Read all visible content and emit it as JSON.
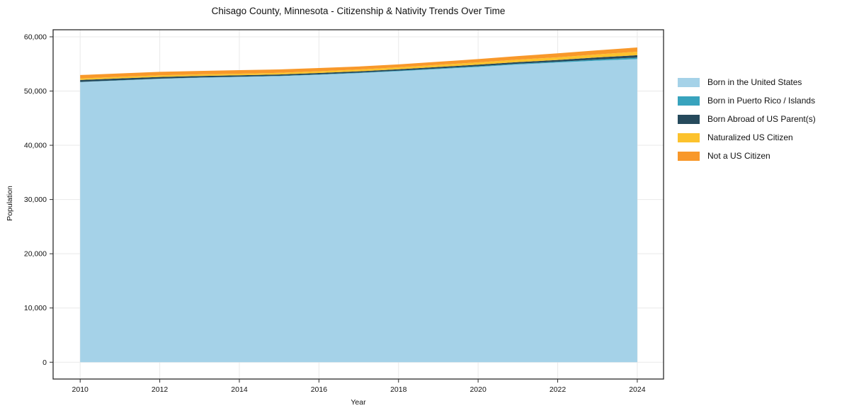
{
  "chart_data": {
    "type": "area",
    "stacked": true,
    "title": "Chisago County, Minnesota - Citizenship & Nativity Trends Over Time",
    "xlabel": "Year",
    "ylabel": "Population",
    "grid": true,
    "legend_position": "right-outside",
    "background_color": "#ffffff",
    "grid_color": "#e9e9e9",
    "spine_color": "#2b2b2b",
    "x": [
      2010,
      2011,
      2012,
      2013,
      2014,
      2015,
      2016,
      2017,
      2018,
      2019,
      2020,
      2021,
      2022,
      2023,
      2024
    ],
    "x_ticks": [
      2010,
      2012,
      2014,
      2016,
      2018,
      2020,
      2022,
      2024
    ],
    "x_tick_labels": [
      "2010",
      "2012",
      "2014",
      "2016",
      "2018",
      "2020",
      "2022",
      "2024"
    ],
    "y_ticks": [
      0,
      10000,
      20000,
      30000,
      40000,
      50000,
      60000
    ],
    "y_tick_labels": [
      "0",
      "10,000",
      "20,000",
      "30,000",
      "40,000",
      "50,000",
      "60,000"
    ],
    "xlim": [
      2009.32,
      2024.66
    ],
    "ylim": [
      -3100,
      61300
    ],
    "series": [
      {
        "name": "Born in the United States",
        "color": "#a5d2e8",
        "values": [
          51650,
          51950,
          52250,
          52450,
          52600,
          52750,
          53000,
          53300,
          53650,
          54050,
          54450,
          54900,
          55250,
          55600,
          55900
        ]
      },
      {
        "name": "Born in Puerto Rico / Islands",
        "color": "#38a3bd",
        "values": [
          40,
          40,
          45,
          50,
          50,
          60,
          70,
          90,
          110,
          120,
          130,
          140,
          160,
          220,
          280
        ]
      },
      {
        "name": "Born Abroad of US Parent(s)",
        "color": "#264a5c",
        "values": [
          350,
          340,
          300,
          280,
          260,
          250,
          260,
          250,
          260,
          270,
          280,
          300,
          320,
          380,
          430
        ]
      },
      {
        "name": "Naturalized US Citizen",
        "color": "#fcc22d",
        "values": [
          290,
          300,
          310,
          300,
          290,
          300,
          320,
          330,
          360,
          400,
          430,
          460,
          490,
          560,
          640
        ]
      },
      {
        "name": "Not a US Citizen",
        "color": "#f8982a",
        "values": [
          620,
          620,
          640,
          620,
          650,
          620,
          600,
          560,
          540,
          560,
          610,
          650,
          730,
          760,
          780
        ]
      }
    ]
  }
}
